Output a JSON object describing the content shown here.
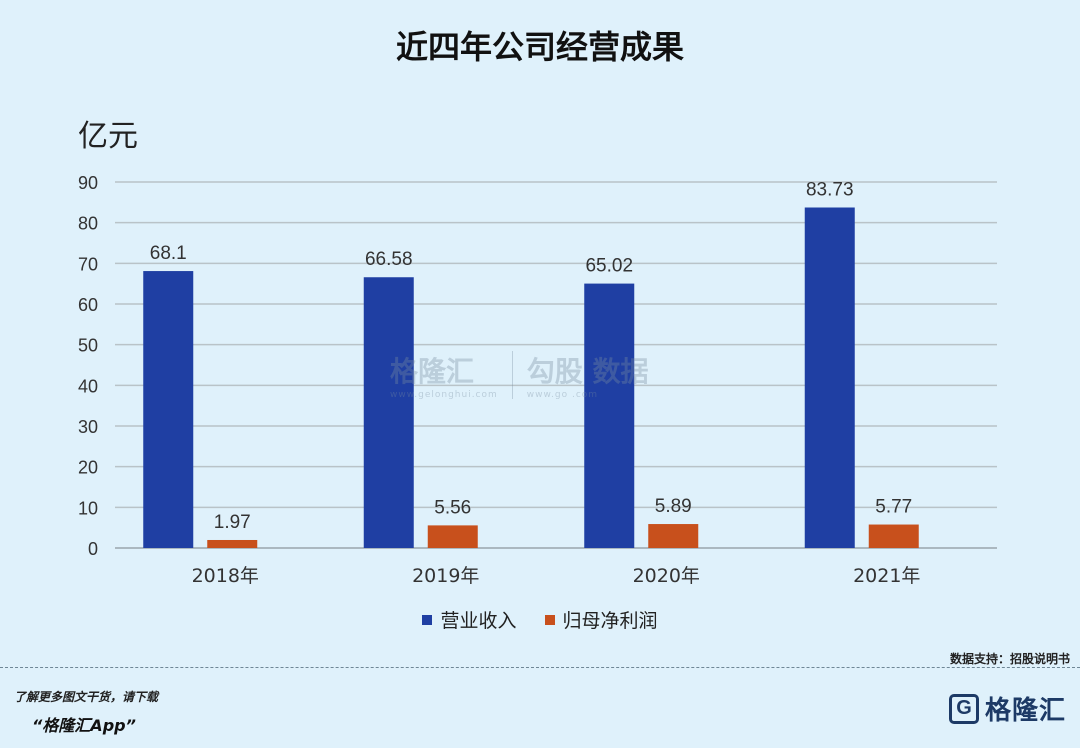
{
  "title": "近四年公司经营成果",
  "chart_data": {
    "type": "bar",
    "ylabel": "亿元",
    "ylim": [
      0,
      90
    ],
    "yticks": [
      0,
      10,
      20,
      30,
      40,
      50,
      60,
      70,
      80,
      90
    ],
    "categories": [
      "2018年",
      "2019年",
      "2020年",
      "2021年"
    ],
    "series": [
      {
        "name": "营业收入",
        "color": "#1f3fa3",
        "values": [
          68.1,
          66.58,
          65.02,
          83.73
        ],
        "labels": [
          "68.1",
          "66.58",
          "65.02",
          "83.73"
        ]
      },
      {
        "name": "归母净利润",
        "color": "#c8501c",
        "values": [
          1.97,
          5.56,
          5.89,
          5.77
        ],
        "labels": [
          "1.97",
          "5.56",
          "5.89",
          "5.77"
        ]
      }
    ],
    "grid": true,
    "legend_position": "bottom"
  },
  "source": "数据支持：招股说明书",
  "watermark": {
    "left_name": "格隆汇",
    "left_url": "www.gelonghui.com",
    "right_name": "勾股   数据",
    "right_url": "www.go        .com"
  },
  "promo": {
    "line1": "了解更多图文干货，请下载",
    "line2": "“格隆汇App”"
  },
  "logo": {
    "mark": "G",
    "name": "格隆汇"
  }
}
